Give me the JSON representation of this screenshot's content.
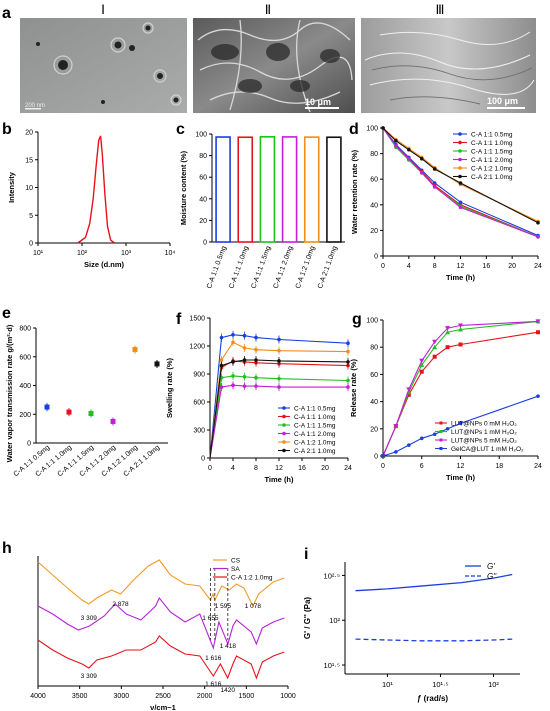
{
  "colors": {
    "blue": "#1a3fe0",
    "red": "#e8121c",
    "green": "#1ec11e",
    "purple": "#c21fd6",
    "orange": "#f28c1a",
    "black": "#111111",
    "cs_orange": "#f39a2a",
    "sa_purple": "#b522d8",
    "blend_red": "#e8121c"
  },
  "row1": {
    "label_a": "a",
    "roman": [
      "Ⅰ",
      "Ⅱ",
      "Ⅲ"
    ],
    "scale1": "200 nm",
    "scale2": "10 μm",
    "scale3": "100 μm"
  },
  "panel_labels": {
    "b": "b",
    "c": "c",
    "d": "d",
    "e": "e",
    "f": "f",
    "g": "g",
    "h": "h",
    "i": "i"
  },
  "chart_data": [
    {
      "panel": "b",
      "type": "line",
      "xlabel": "Size (d.nm)",
      "ylabel": "Intensity",
      "xscale": "log",
      "xticks": [
        "10¹",
        "10²",
        "10³",
        "10⁴"
      ],
      "yticks": [
        "0",
        "5",
        "10",
        "15",
        "20"
      ],
      "ylim": [
        0,
        20
      ],
      "series": [
        {
          "color": "#e8121c",
          "x": [
            80,
            120,
            150,
            180,
            210,
            240,
            265,
            290,
            330,
            380,
            450,
            550
          ],
          "y": [
            0,
            1,
            3.5,
            8,
            14,
            18.5,
            19.3,
            16,
            9,
            3,
            0.5,
            0
          ]
        }
      ]
    },
    {
      "panel": "c",
      "type": "bar",
      "ylabel": "Moisture content (%)",
      "ylim": [
        0,
        100
      ],
      "yticks": [
        "0",
        "20",
        "40",
        "60",
        "80",
        "100"
      ],
      "categories": [
        "C-A 1:1 0.5mg",
        "C-A 1:1 1.0mg",
        "C-A 1:1 1.5mg",
        "C-A 1:1 2.0mg",
        "C-A 1:2 1.0mg",
        "C-A 2:1 1.0mg"
      ],
      "values": [
        97.2,
        97.0,
        97.4,
        97.3,
        97.1,
        97.0
      ],
      "colors": [
        "#1a3fe0",
        "#e8121c",
        "#1ec11e",
        "#c21fd6",
        "#f28c1a",
        "#111111"
      ]
    },
    {
      "panel": "d",
      "type": "line",
      "xlabel": "Time (h)",
      "ylabel": "Water retention rate (%)",
      "xlim": [
        0,
        24
      ],
      "ylim": [
        0,
        100
      ],
      "xticks": [
        "0",
        "4",
        "8",
        "12",
        "16",
        "20",
        "24"
      ],
      "yticks": [
        "0",
        "20",
        "40",
        "60",
        "80",
        "100"
      ],
      "x": [
        0,
        2,
        4,
        6,
        8,
        12,
        24
      ],
      "legend_position": "top-right",
      "series": [
        {
          "name": "C-A 1:1 0.5mg",
          "color": "#1a3fe0",
          "y": [
            100,
            87,
            77,
            67,
            57,
            42,
            16
          ]
        },
        {
          "name": "C-A 1:1 1.0mg",
          "color": "#e8121c",
          "y": [
            100,
            86,
            76,
            66,
            55,
            40,
            15
          ]
        },
        {
          "name": "C-A 1:1 1.5mg",
          "color": "#1ec11e",
          "y": [
            100,
            85,
            75,
            65,
            54,
            39,
            15
          ]
        },
        {
          "name": "C-A 1:1 2.0mg",
          "color": "#c21fd6",
          "y": [
            100,
            86,
            76,
            65,
            54,
            38,
            15
          ]
        },
        {
          "name": "C-A 1:2 1.0mg",
          "color": "#f28c1a",
          "y": [
            100,
            91,
            84,
            77,
            69,
            56,
            27
          ]
        },
        {
          "name": "C-A 2:1 1.0mg",
          "color": "#111111",
          "y": [
            100,
            90,
            83,
            76,
            68,
            57,
            26
          ]
        }
      ]
    },
    {
      "panel": "e",
      "type": "scatter",
      "ylabel": "Water vapor transmission rate g/(m²·d)",
      "ylim": [
        0,
        800
      ],
      "yticks": [
        "0",
        "200",
        "400",
        "600",
        "800"
      ],
      "categories": [
        "C-A 1:1 0.5mg",
        "C-A 1:1 1.0mg",
        "C-A 1:1 1.5mg",
        "C-A 1:1 2.0mg",
        "C-A 1:2 1.0mg",
        "C-A 2:1 1.0mg"
      ],
      "values": [
        250,
        215,
        205,
        150,
        650,
        550
      ],
      "colors": [
        "#1a3fe0",
        "#e8121c",
        "#1ec11e",
        "#c21fd6",
        "#f28c1a",
        "#111111"
      ]
    },
    {
      "panel": "f",
      "type": "line",
      "xlabel": "Time (h)",
      "ylabel": "Swelling rate (%)",
      "xlim": [
        0,
        24
      ],
      "ylim": [
        0,
        1500
      ],
      "xticks": [
        "0",
        "4",
        "8",
        "12",
        "16",
        "20",
        "24"
      ],
      "yticks": [
        "0",
        "300",
        "600",
        "900",
        "1200",
        "1500"
      ],
      "x": [
        0,
        2,
        4,
        6,
        8,
        12,
        24
      ],
      "legend_position": "bottom-right",
      "series": [
        {
          "name": "C-A 1:1 0.5mg",
          "color": "#1a3fe0",
          "y": [
            0,
            1290,
            1320,
            1310,
            1290,
            1270,
            1230
          ]
        },
        {
          "name": "C-A 1:1 1.0mg",
          "color": "#e8121c",
          "y": [
            0,
            970,
            1040,
            1030,
            1020,
            1010,
            990
          ]
        },
        {
          "name": "C-A 1:1 1.5mg",
          "color": "#1ec11e",
          "y": [
            0,
            860,
            880,
            870,
            860,
            850,
            830
          ]
        },
        {
          "name": "C-A 1:1 2.0mg",
          "color": "#c21fd6",
          "y": [
            0,
            760,
            780,
            770,
            770,
            760,
            760
          ]
        },
        {
          "name": "C-A 1:2 1.0mg",
          "color": "#f28c1a",
          "y": [
            0,
            1050,
            1240,
            1180,
            1160,
            1150,
            1140
          ]
        },
        {
          "name": "C-A 2:1 1.0mg",
          "color": "#111111",
          "y": [
            0,
            990,
            1030,
            1050,
            1050,
            1040,
            1030
          ]
        }
      ]
    },
    {
      "panel": "g",
      "type": "line",
      "xlabel": "Time (h)",
      "ylabel": "Release rate (%)",
      "xlim": [
        0,
        24
      ],
      "ylim": [
        0,
        100
      ],
      "xticks": [
        "0",
        "6",
        "12",
        "18",
        "24"
      ],
      "yticks": [
        "0",
        "20",
        "40",
        "60",
        "80",
        "100"
      ],
      "x": [
        0,
        2,
        4,
        6,
        8,
        10,
        12,
        24
      ],
      "legend_position": "bottom-right",
      "series": [
        {
          "name": "LUT@NPs 0 mM H₂O₂",
          "color": "#e8121c",
          "y": [
            0,
            22,
            45,
            62,
            73,
            80,
            82,
            91
          ]
        },
        {
          "name": "LUT@NPs 1 mM H₂O₂",
          "color": "#1ec11e",
          "y": [
            0,
            22,
            47,
            67,
            80,
            91,
            93,
            99
          ]
        },
        {
          "name": "LUT@NPs 5 mM H₂O₂",
          "color": "#c21fd6",
          "y": [
            0,
            22,
            49,
            70,
            84,
            94,
            96,
            99
          ]
        },
        {
          "name": "GelCA@LUT 1 mM H₂O₂",
          "color": "#1a3fe0",
          "y": [
            0,
            3,
            8,
            13,
            16,
            20,
            24,
            44
          ]
        }
      ]
    },
    {
      "panel": "h",
      "type": "line",
      "xlabel": "ν/cm−1",
      "xticks": [
        "4000",
        "3500",
        "3000",
        "2500",
        "2000",
        "1500",
        "1000"
      ],
      "legend_position": "top-right",
      "annotations": [
        "3 309",
        "2 878",
        "1 655",
        "1 595",
        "1 078",
        "1 616",
        "1 418",
        "3 309",
        "1 616",
        "1420"
      ],
      "series": [
        {
          "name": "CS",
          "color": "#f39a2a"
        },
        {
          "name": "SA",
          "color": "#b522d8"
        },
        {
          "name": "C-A 1:2 1.0mg",
          "color": "#e8121c"
        }
      ]
    },
    {
      "panel": "i",
      "type": "line",
      "xlabel": "ƒ (rad/s)",
      "ylabel": "G' / G'' (Pa)",
      "xscale": "log",
      "yscale": "log",
      "xticks": [
        "10¹",
        "10¹·⁵",
        "10²"
      ],
      "yticks": [
        "10¹·⁵",
        "10²",
        "10²·⁵"
      ],
      "legend_position": "top-right",
      "series": [
        {
          "name": "G'",
          "color": "#1a3fe0",
          "style": "solid",
          "x": [
            5,
            10,
            20,
            50,
            100,
            150
          ],
          "y": [
            2.33,
            2.35,
            2.38,
            2.42,
            2.47,
            2.51
          ]
        },
        {
          "name": "G''",
          "color": "#1a3fe0",
          "style": "dashed",
          "x": [
            5,
            10,
            20,
            50,
            100,
            150
          ],
          "y": [
            1.79,
            1.78,
            1.77,
            1.77,
            1.78,
            1.79
          ]
        }
      ]
    }
  ]
}
